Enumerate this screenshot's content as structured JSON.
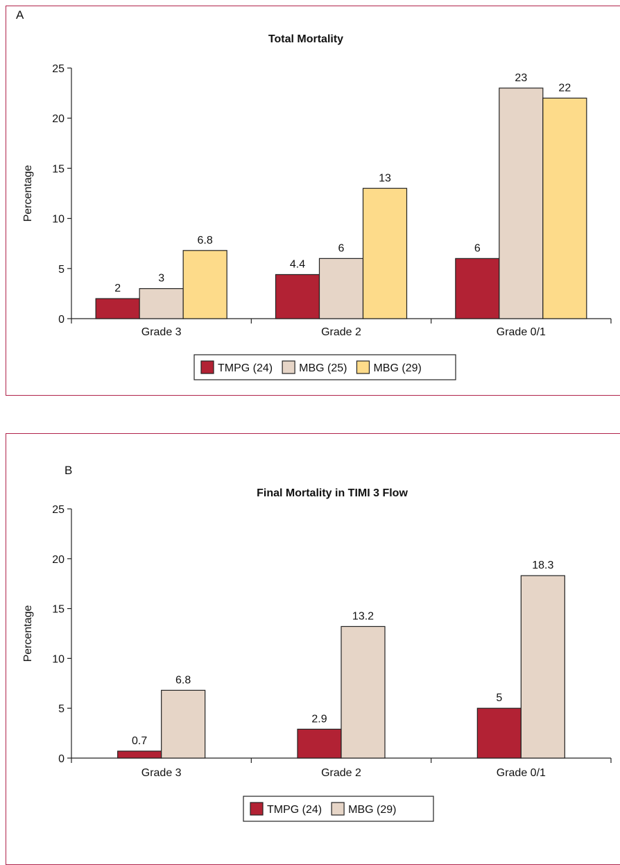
{
  "chart_data": [
    {
      "panel_label": "A",
      "type": "bar",
      "title": "Total Mortality",
      "ylabel": "Percentage",
      "xlabel": "",
      "ylim": [
        0,
        25
      ],
      "yticks": [
        0,
        5,
        10,
        15,
        20,
        25
      ],
      "grid": false,
      "legend": "bottom-center",
      "categories": [
        "Grade 3",
        "Grade 2",
        "Grade 0/1"
      ],
      "series": [
        {
          "name": "TMPG (24)",
          "color": "#b22234",
          "values": [
            2,
            4.4,
            6
          ],
          "labels": [
            "2",
            "4.4",
            "6"
          ]
        },
        {
          "name": "MBG (25)",
          "color": "#e6d5c7",
          "values": [
            3,
            6,
            23
          ],
          "labels": [
            "3",
            "6",
            "23"
          ]
        },
        {
          "name": "MBG (29)",
          "color": "#fddb8a",
          "values": [
            6.8,
            13,
            22
          ],
          "labels": [
            "6.8",
            "13",
            "22"
          ]
        }
      ]
    },
    {
      "panel_label": "B",
      "type": "bar",
      "title": "Final Mortality in TIMI 3 Flow",
      "ylabel": "Percentage",
      "xlabel": "",
      "ylim": [
        0,
        25
      ],
      "yticks": [
        0,
        5,
        10,
        15,
        20,
        25
      ],
      "grid": false,
      "legend": "bottom-center",
      "categories": [
        "Grade 3",
        "Grade 2",
        "Grade 0/1"
      ],
      "series": [
        {
          "name": "TMPG (24)",
          "color": "#b22234",
          "values": [
            0.7,
            2.9,
            5
          ],
          "labels": [
            "0.7",
            "2.9",
            "5"
          ]
        },
        {
          "name": "MBG (29)",
          "color": "#e6d5c7",
          "values": [
            6.8,
            13.2,
            18.3
          ],
          "labels": [
            "6.8",
            "13.2",
            "18.3"
          ]
        }
      ]
    }
  ]
}
